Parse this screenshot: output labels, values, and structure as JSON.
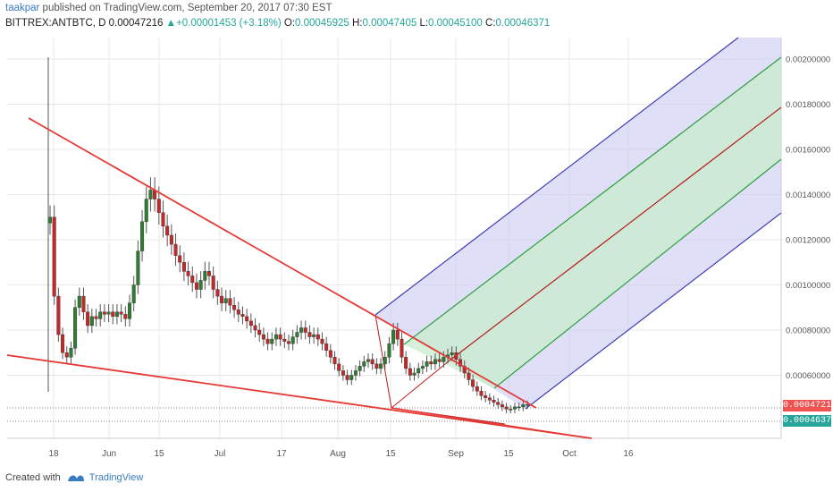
{
  "header": {
    "publisher": "taakpar",
    "published_text": " published on TradingView.com, September 20, 2017 07:30 EST",
    "symbol": "BITTREX:ANTBTC, D",
    "last": "0.00047216",
    "change": "+0.00001453 (+3.18%)",
    "o_label": "O:",
    "o_value": "0.00045925",
    "h_label": "H:",
    "h_value": "0.00047405",
    "l_label": "L:",
    "l_value": "0.00045100",
    "c_label": "C:",
    "c_value": "0.00046371"
  },
  "footer": {
    "created_with": "Created with",
    "brand": "TradingView"
  },
  "price_tags": {
    "close": "0.00047216",
    "open": "0.00046371"
  },
  "colors": {
    "up": "#26a69a",
    "candle_up": "#2e7d32",
    "candle_down": "#c62828",
    "trendline": "#e53935",
    "pitchfork_outer": "#3f3fb5",
    "pitchfork_inner": "#2e9e3e",
    "pitchfork_median": "#b71c1c",
    "band_blue": "#c5c5f0",
    "band_green": "#c8eccc"
  },
  "chart_data": {
    "type": "candlestick",
    "symbol": "BITTREX:ANTBTC",
    "interval": "D",
    "y_axis_labels": [
      "0.00200000",
      "0.00180000",
      "0.00160000",
      "0.00140000",
      "0.00120000",
      "0.00100000",
      "0.00080000",
      "0.00060000"
    ],
    "ylim": [
      0.0003,
      0.0021
    ],
    "x_axis_labels": [
      "18",
      "Jun",
      "15",
      "Jul",
      "17",
      "Aug",
      "15",
      "Sep",
      "15",
      "Oct",
      "16"
    ],
    "series": [
      {
        "name": "close",
        "values": [
          0.0013,
          0.00095,
          0.00078,
          0.0007,
          0.00068,
          0.00072,
          0.0009,
          0.00095,
          0.00088,
          0.00082,
          0.00086,
          0.00085,
          0.00088,
          0.00087,
          0.00088,
          0.00086,
          0.00088,
          0.00087,
          0.00085,
          0.00092,
          0.001,
          0.00115,
          0.00128,
          0.00138,
          0.00142,
          0.00138,
          0.00132,
          0.00126,
          0.00122,
          0.00118,
          0.00113,
          0.0011,
          0.00106,
          0.00104,
          0.00101,
          0.00098,
          0.00102,
          0.00106,
          0.00104,
          0.00098,
          0.00095,
          0.00092,
          0.00094,
          0.00091,
          0.00089,
          0.00087,
          0.00086,
          0.00084,
          0.00082,
          0.0008,
          0.00078,
          0.00076,
          0.00074,
          0.00076,
          0.00078,
          0.00076,
          0.00075,
          0.00074,
          0.00077,
          0.00079,
          0.00081,
          0.00079,
          0.00077,
          0.00078,
          0.00076,
          0.00074,
          0.00071,
          0.00068,
          0.00065,
          0.00062,
          0.0006,
          0.00058,
          0.0006,
          0.00062,
          0.00064,
          0.00066,
          0.00067,
          0.00065,
          0.00063,
          0.00065,
          0.00068,
          0.00074,
          0.0008,
          0.00076,
          0.00068,
          0.00063,
          0.0006,
          0.00061,
          0.00063,
          0.00064,
          0.00066,
          0.00065,
          0.00067,
          0.00066,
          0.00068,
          0.00069,
          0.0007,
          0.00067,
          0.00064,
          0.00061,
          0.00058,
          0.00055,
          0.00053,
          0.00051,
          0.0005,
          0.00049,
          0.00048,
          0.00047,
          0.00046,
          0.00045,
          0.00045,
          0.00046,
          0.00046,
          0.00047,
          0.00047
        ]
      }
    ],
    "drawings": {
      "trendlines": 3,
      "pitchfork": "Andrews pitchfork with median, inner and outer lines"
    }
  }
}
